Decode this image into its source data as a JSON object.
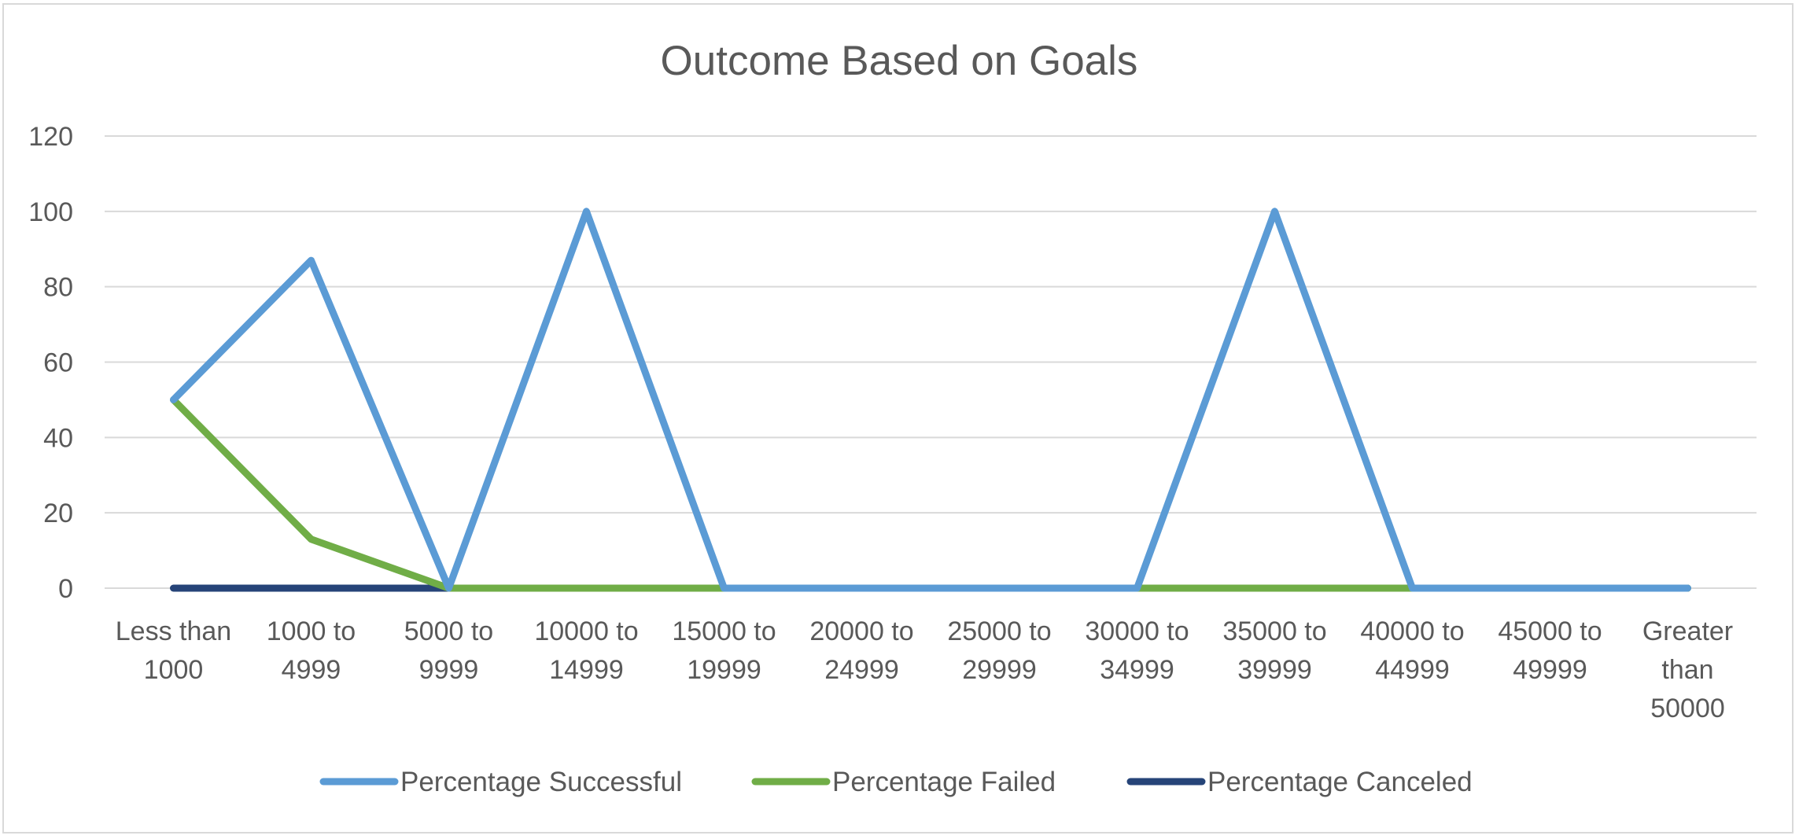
{
  "chart_data": {
    "type": "line",
    "title": "Outcome Based on Goals",
    "xlabel": "",
    "ylabel": "",
    "ylim": [
      0,
      120
    ],
    "yticks": [
      0,
      20,
      40,
      60,
      80,
      100,
      120
    ],
    "grid": true,
    "legend_position": "bottom",
    "categories": [
      [
        "Less than",
        "1000"
      ],
      [
        "1000 to",
        "4999"
      ],
      [
        "5000 to",
        "9999"
      ],
      [
        "10000 to",
        "14999"
      ],
      [
        "15000 to",
        "19999"
      ],
      [
        "20000 to",
        "24999"
      ],
      [
        "25000 to",
        "29999"
      ],
      [
        "30000 to",
        "34999"
      ],
      [
        "35000 to",
        "39999"
      ],
      [
        "40000 to",
        "44999"
      ],
      [
        "45000 to",
        "49999"
      ],
      [
        "Greater",
        "than",
        "50000"
      ]
    ],
    "series": [
      {
        "name": "Percentage Successful",
        "color": "#5b9bd5",
        "values": [
          50,
          87,
          0,
          100,
          0,
          0,
          0,
          0,
          100,
          0,
          0,
          0
        ]
      },
      {
        "name": "Percentage Failed",
        "color": "#70ad47",
        "values": [
          50,
          13,
          0,
          0,
          0,
          0,
          0,
          0,
          0,
          0,
          0,
          0
        ]
      },
      {
        "name": "Percentage Canceled",
        "color": "#264478",
        "values": [
          0,
          0,
          0,
          0,
          0,
          0,
          0,
          0,
          0,
          0,
          0,
          0
        ]
      }
    ],
    "colors": {
      "gridline": "#d9d9d9",
      "text": "#595959",
      "border": "#d9d9d9"
    }
  }
}
